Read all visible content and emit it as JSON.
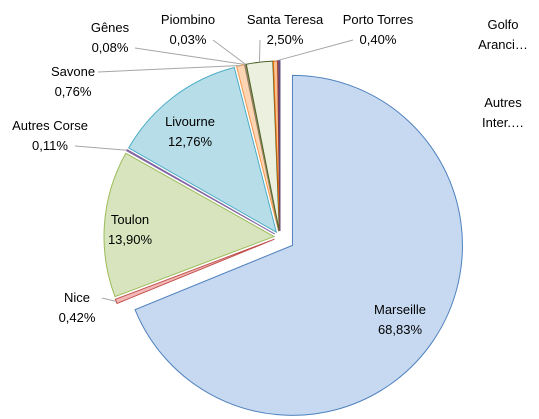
{
  "chart_data": {
    "type": "pie",
    "categories": [
      "Marseille",
      "Nice",
      "Toulon",
      "Autres Corse",
      "Livourne",
      "Savone",
      "Gênes",
      "Piombino",
      "Santa Teresa",
      "Porto Torres",
      "Golfo Aranci…",
      "Autres Inter.…"
    ],
    "values": [
      68.83,
      0.42,
      13.9,
      0.11,
      12.76,
      0.76,
      0.08,
      0.03,
      2.5,
      0.4,
      0.11,
      0.1
    ],
    "value_labels": [
      "68,83%",
      "0,42%",
      "13,90%",
      "0,11%",
      "12,76%",
      "0,76%",
      "0,08%",
      "0,03%",
      "2,50%",
      "0,40%",
      null,
      null
    ],
    "colors": [
      "#c6d9f1",
      "#f2b8b6",
      "#d7e4bd",
      "#ccc1da",
      "#b7dee8",
      "#fcd5b5",
      "#d9d9d9",
      "#c4bd97",
      "#ebf1de",
      "#fac090",
      "#e6b9b8",
      "#b3a2c7"
    ],
    "strokes": [
      "#4f81bd",
      "#c0504d",
      "#9bbb59",
      "#8064a2",
      "#4bacc6",
      "#f79646",
      "#7f7f7f",
      "#948a54",
      "#4f6228",
      "#e46c0a",
      "#953735",
      "#604a7b"
    ]
  }
}
